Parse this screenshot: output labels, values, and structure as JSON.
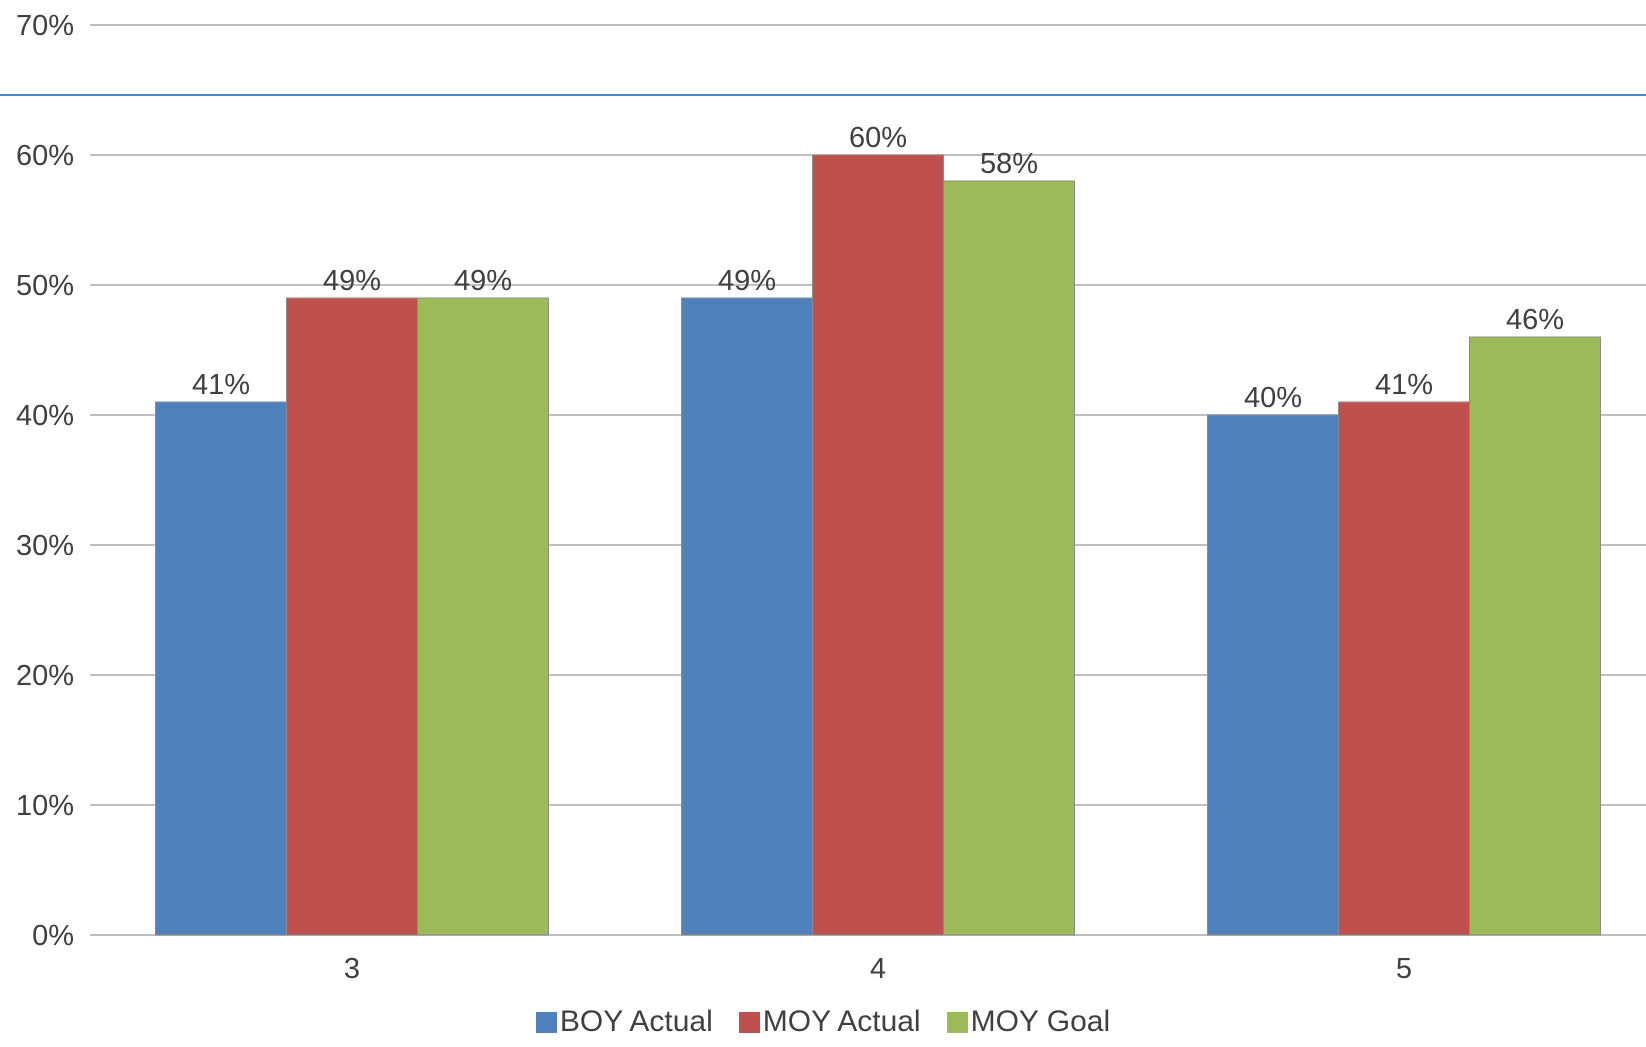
{
  "chart_data": {
    "type": "bar",
    "title": "",
    "xlabel": "",
    "ylabel": "",
    "categories": [
      "3",
      "4",
      "5"
    ],
    "series": [
      {
        "name": "BOY Actual",
        "values": [
          41,
          49,
          40
        ],
        "labels": [
          "41%",
          "49%",
          "40%"
        ],
        "color": "#4F81BD"
      },
      {
        "name": "MOY Actual",
        "values": [
          49,
          60,
          41
        ],
        "labels": [
          "49%",
          "60%",
          "41%"
        ],
        "color": "#C0504D"
      },
      {
        "name": "MOY Goal",
        "values": [
          49,
          58,
          46
        ],
        "labels": [
          "49%",
          "58%",
          "46%"
        ],
        "color": "#9BBB59"
      }
    ],
    "ylim": [
      0,
      70
    ],
    "yticks": [
      0,
      10,
      20,
      30,
      40,
      50,
      60,
      70
    ],
    "ytick_labels": [
      "0%",
      "10%",
      "20%",
      "30%",
      "40%",
      "50%",
      "60%",
      "70%"
    ],
    "grid": true,
    "legend_position": "bottom",
    "reference_line_color": "#4A86C8",
    "gridline_color": "#BFBFBF",
    "bar_border_color": "#8C8C8C"
  }
}
